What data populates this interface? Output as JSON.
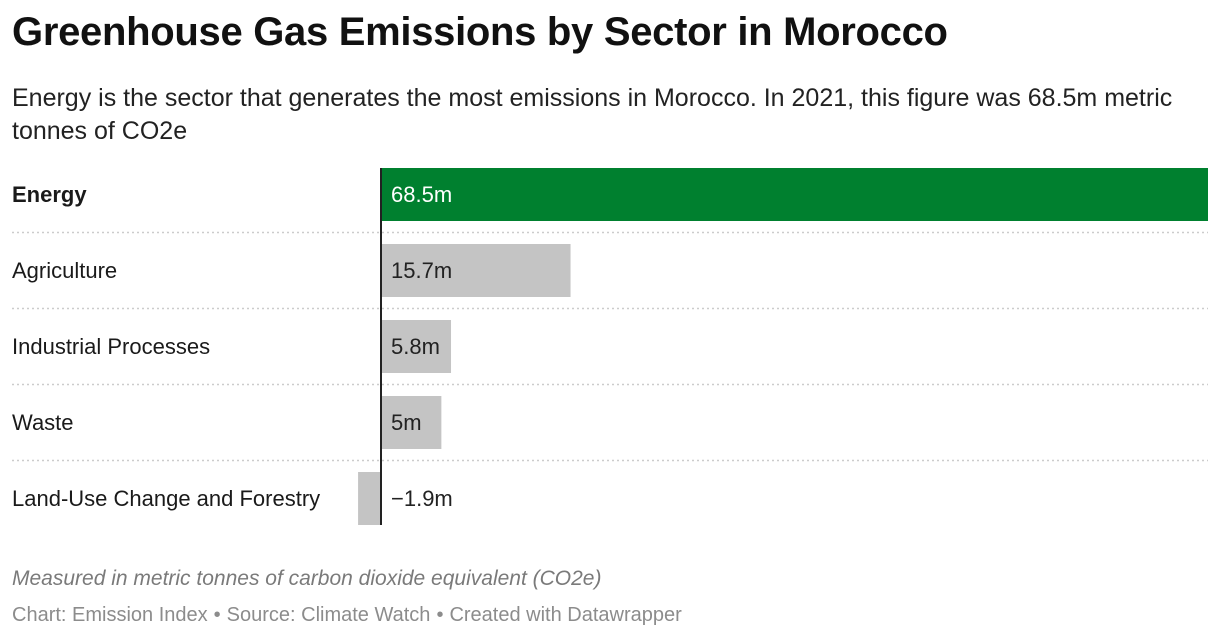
{
  "title": "Greenhouse Gas Emissions by Sector in Morocco",
  "subtitle": "Energy is the sector that generates the most emissions in Morocco. In 2021, this figure was 68.5m metric tonnes of CO2e",
  "note": "Measured in metric tonnes of carbon dioxide equivalent (CO2e)",
  "footer": {
    "chart_label": "Chart: Emission Index",
    "source_label": "Source: Climate Watch",
    "created_label": "Created with Datawrapper",
    "separator": "•"
  },
  "colors": {
    "highlight": "#00802f",
    "default": "#c4c4c4",
    "axis": "#222222",
    "grid": "#cccccc"
  },
  "chart_data": {
    "type": "bar",
    "orientation": "horizontal",
    "categories": [
      "Energy",
      "Agriculture",
      "Industrial Processes",
      "Waste",
      "Land-Use Change and Forestry"
    ],
    "values": [
      68.5,
      15.7,
      5.8,
      5.0,
      -1.9
    ],
    "value_labels": [
      "68.5m",
      "15.7m",
      "5.8m",
      "5m",
      "−1.9m"
    ],
    "highlighted": [
      "Energy"
    ],
    "xlim": [
      -1.9,
      68.5
    ]
  }
}
